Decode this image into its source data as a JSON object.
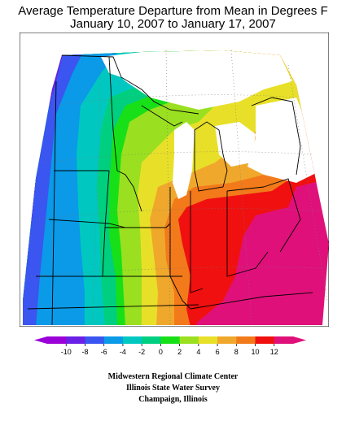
{
  "title": {
    "line1": "Average Temperature Departure from Mean in Degrees F",
    "line2": "January 10, 2007 to January 17, 2007"
  },
  "legend": {
    "ticks": [
      "-10",
      "-8",
      "-6",
      "-4",
      "-2",
      "0",
      "2",
      "4",
      "6",
      "8",
      "10",
      "12"
    ],
    "colors": [
      "#9b00d8",
      "#6a20e6",
      "#3a55f0",
      "#0a9ae8",
      "#00c8c0",
      "#00cf80",
      "#18e018",
      "#9ae020",
      "#e8e028",
      "#f0a82c",
      "#f27a1a",
      "#f01010",
      "#e0107a"
    ]
  },
  "credits": {
    "line1": "Midwestern Regional Climate Center",
    "line2": "Illinois State Water Survey",
    "line3": "Champaign, Illinois"
  }
}
